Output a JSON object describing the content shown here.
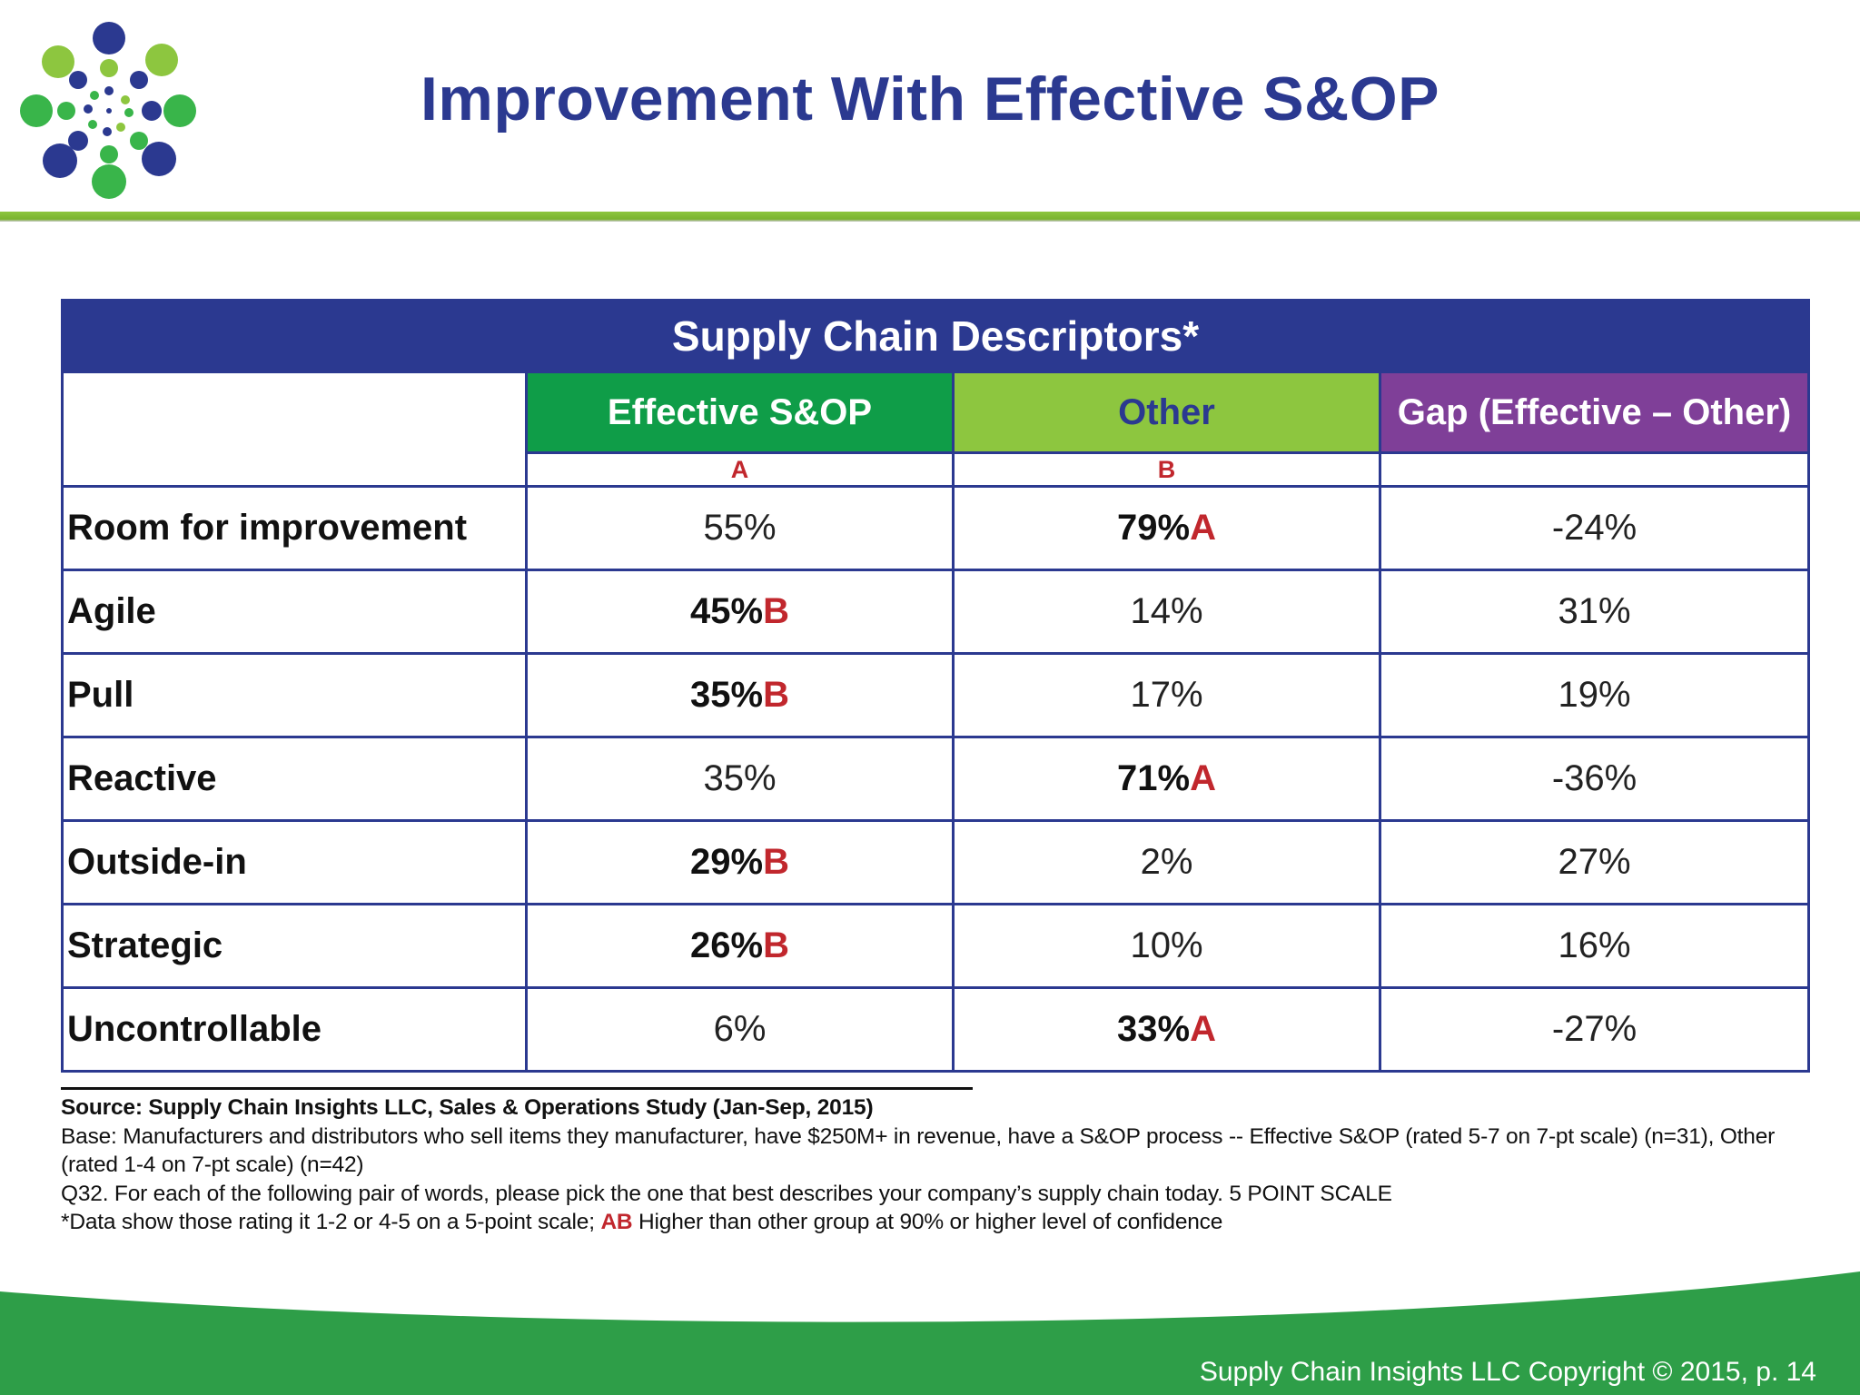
{
  "title": "Improvement With Effective S&OP",
  "colors": {
    "navy": "#2b3990",
    "green": "#0f9d48",
    "light_green": "#8dc63f",
    "purple": "#7f3f98",
    "significance_red": "#c1272d",
    "logo_blue": "#2b3990",
    "logo_green": "#39b54a",
    "logo_lime": "#8dc63f"
  },
  "logo": {
    "icon": "dot-burst-logo-icon"
  },
  "table": {
    "caption": "Supply Chain Descriptors*",
    "columns": [
      {
        "label": "Effective S&OP",
        "letter": "A"
      },
      {
        "label": "Other",
        "letter": "B"
      },
      {
        "label": "Gap (Effective – Other)",
        "letter": ""
      }
    ],
    "rows": [
      {
        "label": "Room for improvement",
        "effective": "55%",
        "effective_mark": "",
        "other": "79%",
        "other_mark": "A",
        "gap": "-24%"
      },
      {
        "label": "Agile",
        "effective": "45%",
        "effective_mark": "B",
        "other": "14%",
        "other_mark": "",
        "gap": "31%"
      },
      {
        "label": "Pull",
        "effective": "35%",
        "effective_mark": "B",
        "other": "17%",
        "other_mark": "",
        "gap": "19%"
      },
      {
        "label": "Reactive",
        "effective": "35%",
        "effective_mark": "",
        "other": "71%",
        "other_mark": "A",
        "gap": "-36%"
      },
      {
        "label": "Outside-in",
        "effective": "29%",
        "effective_mark": "B",
        "other": "2%",
        "other_mark": "",
        "gap": "27%"
      },
      {
        "label": "Strategic",
        "effective": "26%",
        "effective_mark": "B",
        "other": "10%",
        "other_mark": "",
        "gap": "16%"
      },
      {
        "label": "Uncontrollable",
        "effective": "6%",
        "effective_mark": "",
        "other": "33%",
        "other_mark": "A",
        "gap": "-27%"
      }
    ]
  },
  "notes": {
    "source": "Source:  Supply Chain Insights LLC, Sales & Operations Study (Jan-Sep, 2015)",
    "base": "Base: Manufacturers and distributors who sell items they manufacturer, have $250M+ in revenue, have a S&OP process -- Effective S&OP (rated 5-7 on 7-pt scale) (n=31), Other (rated 1-4 on 7-pt scale) (n=42)",
    "question": "Q32. For each of the following pair of words, please pick the one that best describes your company’s supply chain today. 5 POINT SCALE",
    "data_note_prefix": "*Data show those rating it 1-2 or 4-5 on a 5-point scale; ",
    "data_note_ab": "AB",
    "data_note_suffix": " Higher than other group at 90% or higher level of confidence"
  },
  "footer": {
    "copyright": "Supply Chain Insights LLC Copyright © 2015, p. 14"
  }
}
